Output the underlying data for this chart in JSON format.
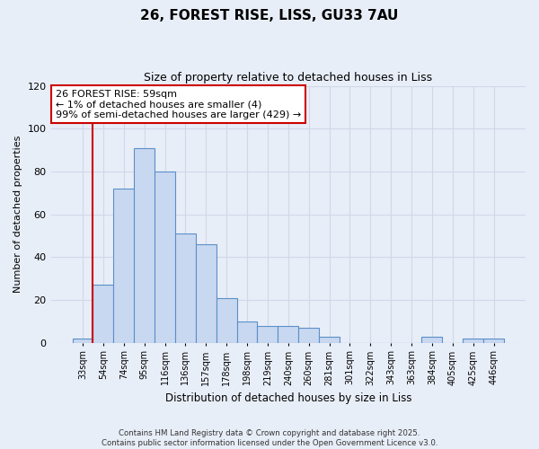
{
  "title_line1": "26, FOREST RISE, LISS, GU33 7AU",
  "title_line2": "Size of property relative to detached houses in Liss",
  "xlabel": "Distribution of detached houses by size in Liss",
  "ylabel": "Number of detached properties",
  "bar_labels": [
    "33sqm",
    "54sqm",
    "74sqm",
    "95sqm",
    "116sqm",
    "136sqm",
    "157sqm",
    "178sqm",
    "198sqm",
    "219sqm",
    "240sqm",
    "260sqm",
    "281sqm",
    "301sqm",
    "322sqm",
    "343sqm",
    "363sqm",
    "384sqm",
    "405sqm",
    "425sqm",
    "446sqm"
  ],
  "bar_values": [
    2,
    27,
    72,
    91,
    80,
    51,
    46,
    21,
    10,
    8,
    8,
    7,
    3,
    0,
    0,
    0,
    0,
    3,
    0,
    2,
    2
  ],
  "bar_color": "#c8d8f0",
  "bar_edge_color": "#5b8fc9",
  "property_line_x": 0.5,
  "annotation_text": "26 FOREST RISE: 59sqm\n← 1% of detached houses are smaller (4)\n99% of semi-detached houses are larger (429) →",
  "annotation_box_color": "#ffffff",
  "annotation_box_edge_color": "#cc0000",
  "vline_color": "#cc0000",
  "ylim": [
    0,
    120
  ],
  "yticks": [
    0,
    20,
    40,
    60,
    80,
    100,
    120
  ],
  "grid_color": "#d0d8e8",
  "background_color": "#e8eef8",
  "footnote": "Contains HM Land Registry data © Crown copyright and database right 2025.\nContains public sector information licensed under the Open Government Licence v3.0."
}
